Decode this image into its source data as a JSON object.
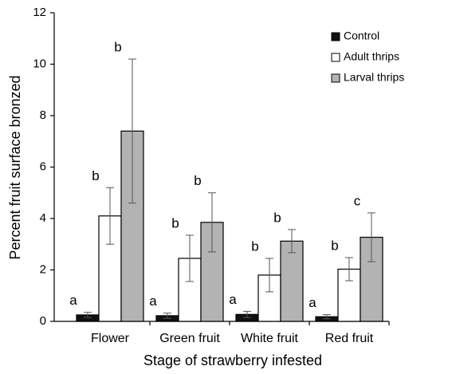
{
  "chart_data": {
    "type": "bar",
    "xlabel": "Stage of strawberry infested",
    "ylabel": "Percent fruit surface bronzed",
    "categories": [
      "Flower",
      "Green fruit",
      "White fruit",
      "Red fruit"
    ],
    "series": [
      {
        "name": "Control",
        "color": "#111111",
        "values": [
          0.25,
          0.22,
          0.27,
          0.18
        ],
        "errors": [
          0.1,
          0.1,
          0.12,
          0.08
        ],
        "letters": [
          "a",
          "a",
          "a",
          "a"
        ]
      },
      {
        "name": "Adult thrips",
        "color": "#ffffff",
        "values": [
          4.1,
          2.45,
          1.8,
          2.03
        ],
        "errors": [
          1.1,
          0.9,
          0.65,
          0.45
        ],
        "letters": [
          "b",
          "b",
          "b",
          "b"
        ]
      },
      {
        "name": "Larval thrips",
        "color": "#b3b3b3",
        "values": [
          7.4,
          3.85,
          3.12,
          3.27
        ],
        "errors": [
          2.8,
          1.15,
          0.45,
          0.95
        ],
        "letters": [
          "b",
          "b",
          "b",
          "c"
        ]
      }
    ],
    "ylim": [
      0,
      12
    ],
    "yticks": [
      0,
      2,
      4,
      6,
      8,
      10,
      12
    ],
    "legend": "upper right"
  }
}
